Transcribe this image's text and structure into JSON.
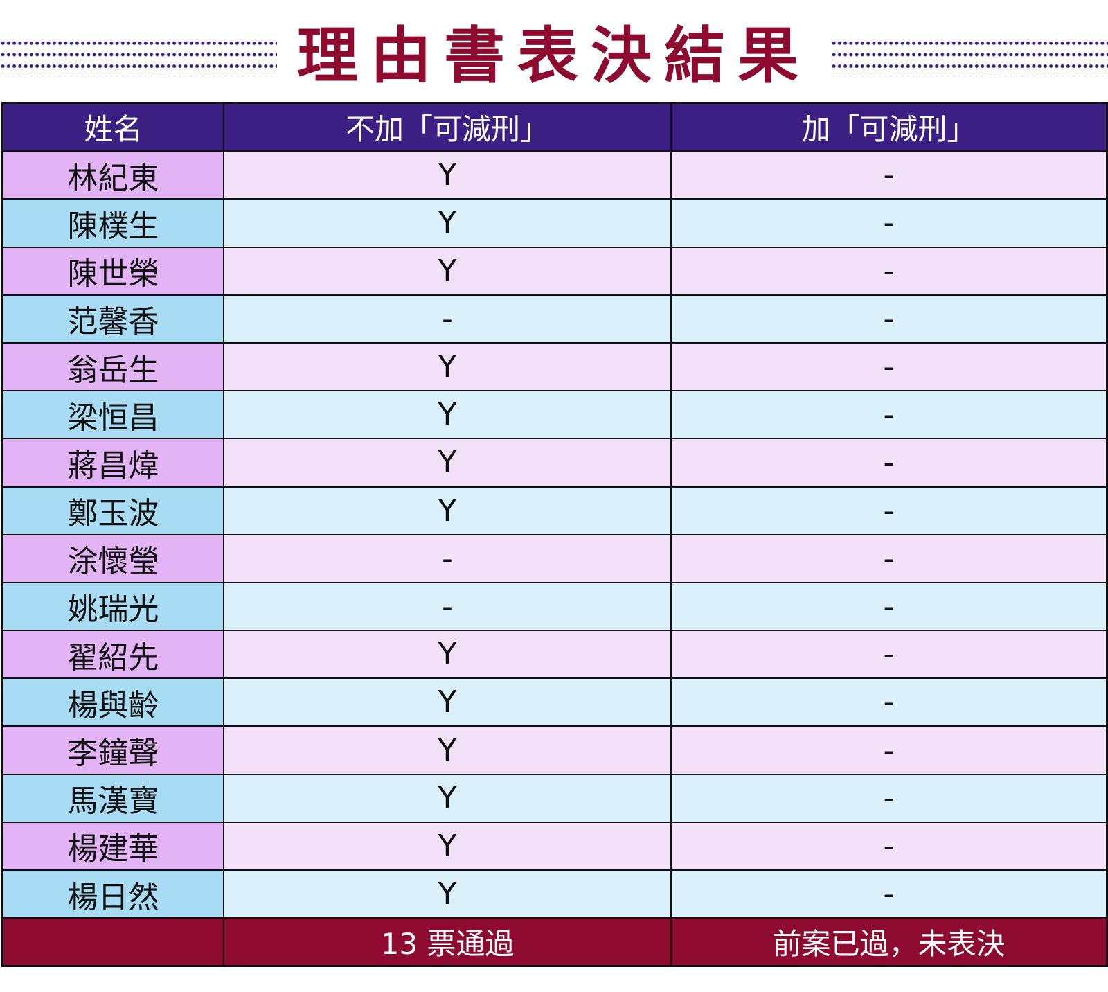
{
  "title": "理由書表決結果",
  "colors": {
    "title": "#8e0a2e",
    "header_bg": "#3b1f83",
    "footer_bg": "#8e0a2e",
    "name_pink": "#e3b4f5",
    "cell_pink": "#f3e1fa",
    "name_blue": "#a8dcf5",
    "cell_blue": "#daf1fb",
    "dots": "#3b1f80"
  },
  "table": {
    "headers": [
      "姓名",
      "不加「可減刑」",
      "加「可減刑」"
    ],
    "rows": [
      [
        "林紀東",
        "Y",
        "-"
      ],
      [
        "陳樸生",
        "Y",
        "-"
      ],
      [
        "陳世榮",
        "Y",
        "-"
      ],
      [
        "范馨香",
        "-",
        "-"
      ],
      [
        "翁岳生",
        "Y",
        "-"
      ],
      [
        "梁恒昌",
        "Y",
        "-"
      ],
      [
        "蔣昌煒",
        "Y",
        "-"
      ],
      [
        "鄭玉波",
        "Y",
        "-"
      ],
      [
        "涂懷瑩",
        "-",
        "-"
      ],
      [
        "姚瑞光",
        "-",
        "-"
      ],
      [
        "翟紹先",
        "Y",
        "-"
      ],
      [
        "楊與齡",
        "Y",
        "-"
      ],
      [
        "李鐘聲",
        "Y",
        "-"
      ],
      [
        "馬漢寶",
        "Y",
        "-"
      ],
      [
        "楊建華",
        "Y",
        "-"
      ],
      [
        "楊日然",
        "Y",
        "-"
      ]
    ],
    "footer": [
      "",
      "13 票通過",
      "前案已過，未表決"
    ]
  }
}
